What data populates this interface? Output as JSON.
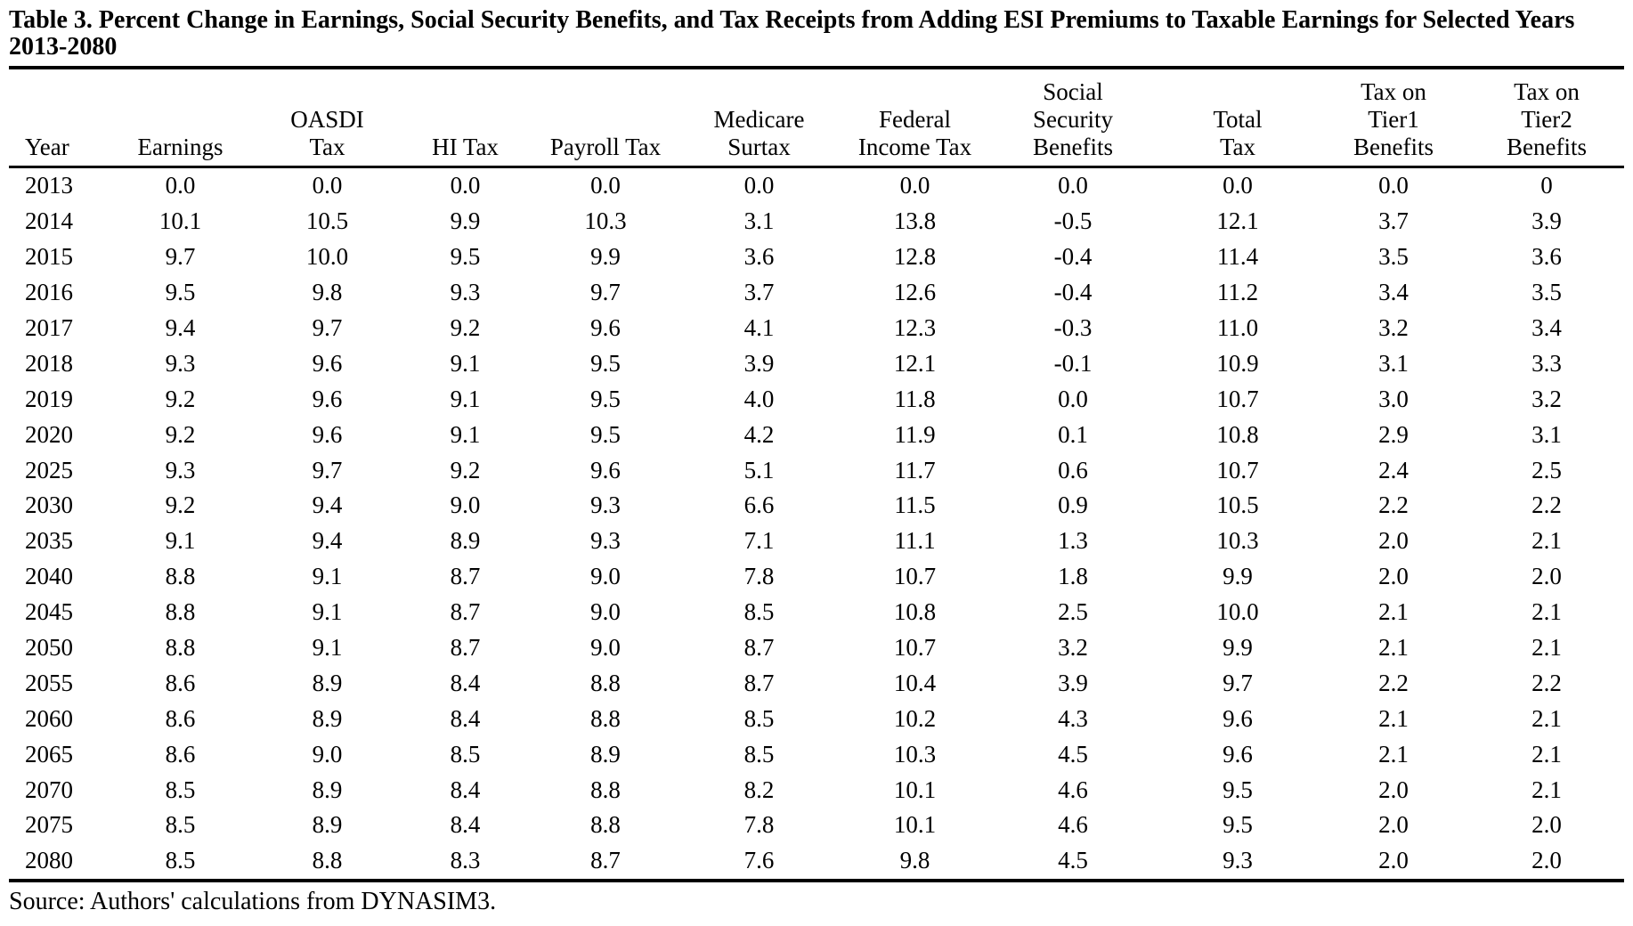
{
  "title": {
    "label": "Table 3.",
    "text": "Percent Change in Earnings, Social Security Benefits, and Tax Receipts from Adding ESI Premiums to Taxable Earnings for Selected Years 2013-2080"
  },
  "source": "Source: Authors' calculations from DYNASIM3.",
  "table": {
    "columns": [
      {
        "id": "year",
        "header": "Year"
      },
      {
        "id": "earnings",
        "header": "Earnings"
      },
      {
        "id": "oasdi_tax",
        "header": "OASDI\nTax"
      },
      {
        "id": "hi_tax",
        "header": "HI Tax"
      },
      {
        "id": "payroll_tax",
        "header": "Payroll Tax"
      },
      {
        "id": "medicare_surtax",
        "header": "Medicare\nSurtax"
      },
      {
        "id": "federal_income_tax",
        "header": "Federal\nIncome Tax"
      },
      {
        "id": "social_security_benefits",
        "header": "Social\nSecurity\nBenefits"
      },
      {
        "id": "total_tax",
        "header": "Total\nTax"
      },
      {
        "id": "tax_tier1_benefits",
        "header": "Tax on\nTier1\nBenefits"
      },
      {
        "id": "tax_tier2_benefits",
        "header": "Tax on\nTier2\nBenefits"
      }
    ],
    "rows": [
      [
        "2013",
        "0.0",
        "0.0",
        "0.0",
        "0.0",
        "0.0",
        "0.0",
        "0.0",
        "0.0",
        "0.0",
        "0"
      ],
      [
        "2014",
        "10.1",
        "10.5",
        "9.9",
        "10.3",
        "3.1",
        "13.8",
        "-0.5",
        "12.1",
        "3.7",
        "3.9"
      ],
      [
        "2015",
        "9.7",
        "10.0",
        "9.5",
        "9.9",
        "3.6",
        "12.8",
        "-0.4",
        "11.4",
        "3.5",
        "3.6"
      ],
      [
        "2016",
        "9.5",
        "9.8",
        "9.3",
        "9.7",
        "3.7",
        "12.6",
        "-0.4",
        "11.2",
        "3.4",
        "3.5"
      ],
      [
        "2017",
        "9.4",
        "9.7",
        "9.2",
        "9.6",
        "4.1",
        "12.3",
        "-0.3",
        "11.0",
        "3.2",
        "3.4"
      ],
      [
        "2018",
        "9.3",
        "9.6",
        "9.1",
        "9.5",
        "3.9",
        "12.1",
        "-0.1",
        "10.9",
        "3.1",
        "3.3"
      ],
      [
        "2019",
        "9.2",
        "9.6",
        "9.1",
        "9.5",
        "4.0",
        "11.8",
        "0.0",
        "10.7",
        "3.0",
        "3.2"
      ],
      [
        "2020",
        "9.2",
        "9.6",
        "9.1",
        "9.5",
        "4.2",
        "11.9",
        "0.1",
        "10.8",
        "2.9",
        "3.1"
      ],
      [
        "2025",
        "9.3",
        "9.7",
        "9.2",
        "9.6",
        "5.1",
        "11.7",
        "0.6",
        "10.7",
        "2.4",
        "2.5"
      ],
      [
        "2030",
        "9.2",
        "9.4",
        "9.0",
        "9.3",
        "6.6",
        "11.5",
        "0.9",
        "10.5",
        "2.2",
        "2.2"
      ],
      [
        "2035",
        "9.1",
        "9.4",
        "8.9",
        "9.3",
        "7.1",
        "11.1",
        "1.3",
        "10.3",
        "2.0",
        "2.1"
      ],
      [
        "2040",
        "8.8",
        "9.1",
        "8.7",
        "9.0",
        "7.8",
        "10.7",
        "1.8",
        "9.9",
        "2.0",
        "2.0"
      ],
      [
        "2045",
        "8.8",
        "9.1",
        "8.7",
        "9.0",
        "8.5",
        "10.8",
        "2.5",
        "10.0",
        "2.1",
        "2.1"
      ],
      [
        "2050",
        "8.8",
        "9.1",
        "8.7",
        "9.0",
        "8.7",
        "10.7",
        "3.2",
        "9.9",
        "2.1",
        "2.1"
      ],
      [
        "2055",
        "8.6",
        "8.9",
        "8.4",
        "8.8",
        "8.7",
        "10.4",
        "3.9",
        "9.7",
        "2.2",
        "2.2"
      ],
      [
        "2060",
        "8.6",
        "8.9",
        "8.4",
        "8.8",
        "8.5",
        "10.2",
        "4.3",
        "9.6",
        "2.1",
        "2.1"
      ],
      [
        "2065",
        "8.6",
        "9.0",
        "8.5",
        "8.9",
        "8.5",
        "10.3",
        "4.5",
        "9.6",
        "2.1",
        "2.1"
      ],
      [
        "2070",
        "8.5",
        "8.9",
        "8.4",
        "8.8",
        "8.2",
        "10.1",
        "4.6",
        "9.5",
        "2.0",
        "2.1"
      ],
      [
        "2075",
        "8.5",
        "8.9",
        "8.4",
        "8.8",
        "7.8",
        "10.1",
        "4.6",
        "9.5",
        "2.0",
        "2.0"
      ],
      [
        "2080",
        "8.5",
        "8.8",
        "8.3",
        "8.7",
        "7.6",
        "9.8",
        "4.5",
        "9.3",
        "2.0",
        "2.0"
      ]
    ]
  }
}
